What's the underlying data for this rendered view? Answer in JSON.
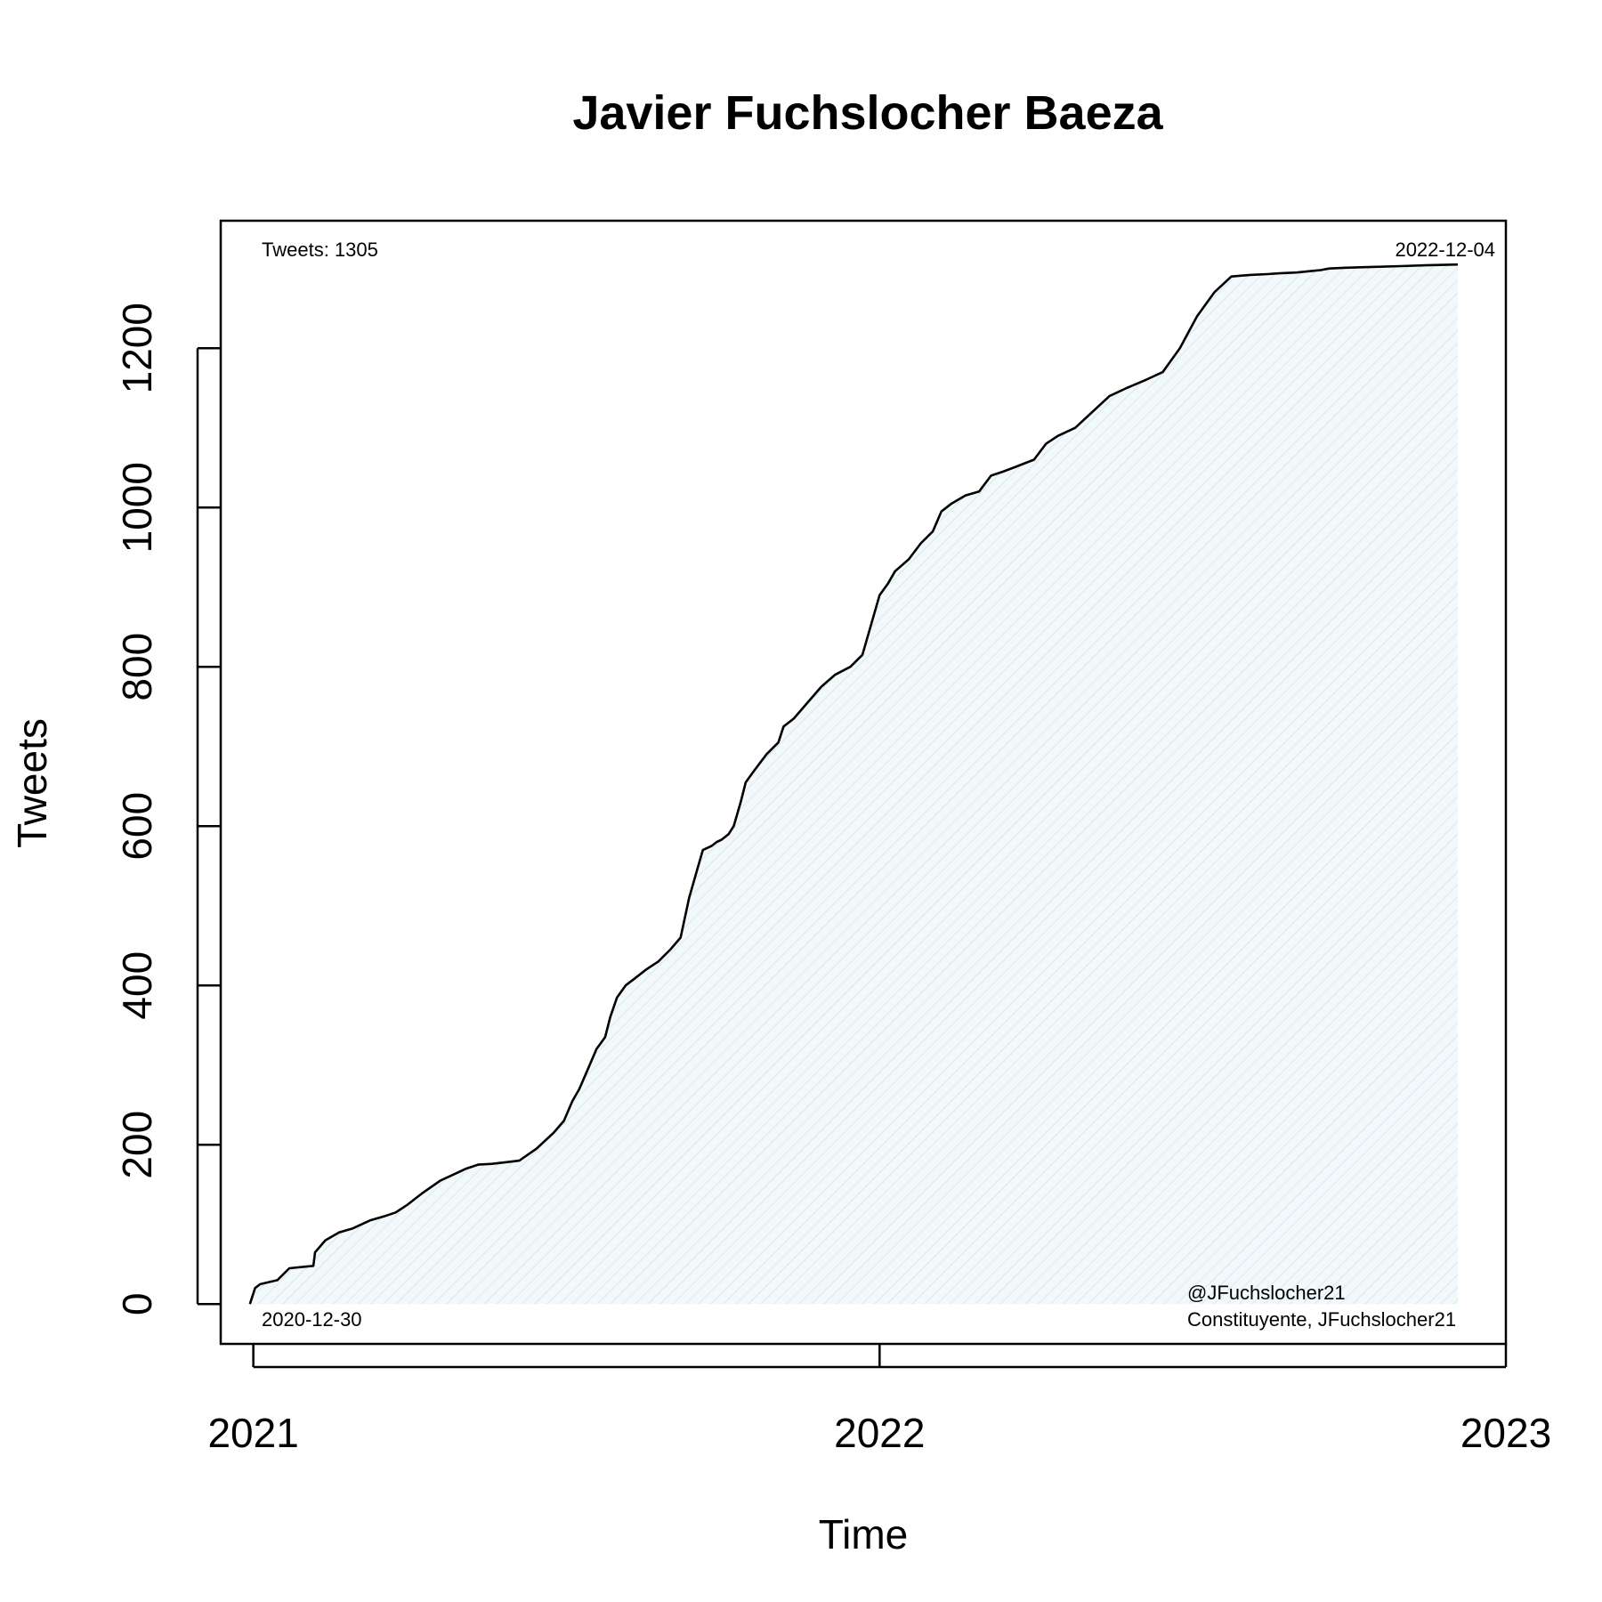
{
  "chart_data": {
    "type": "area",
    "title": "Javier Fuchslocher Baeza",
    "xlabel": "Time",
    "ylabel": "Tweets",
    "xlim": [
      "2020-12-13",
      "2023-01-01"
    ],
    "ylim": [
      -50,
      1360
    ],
    "x_ticks": [
      "2021",
      "2022",
      "2023"
    ],
    "y_ticks": [
      0,
      200,
      400,
      600,
      800,
      1000,
      1200
    ],
    "grid": false,
    "legend": "none",
    "line_color": "#000000",
    "fill_color": "#e8f4f7",
    "annotations": {
      "top_left": "Tweets: 1305",
      "top_right": "2022-12-04",
      "bottom_left": "2020-12-30",
      "bottom_right_line1": "@JFuchslocher21",
      "bottom_right_line2": "Constituyente, JFuchslocher21"
    },
    "series": [
      {
        "x": [
          "2020-12-30",
          "2021-01-02",
          "2021-01-05",
          "2021-01-15",
          "2021-01-22",
          "2021-02-05",
          "2021-02-06",
          "2021-02-12",
          "2021-02-20",
          "2021-02-28",
          "2021-03-10",
          "2021-03-18",
          "2021-03-25",
          "2021-04-01",
          "2021-04-10",
          "2021-04-20",
          "2021-05-05",
          "2021-05-12",
          "2021-05-20",
          "2021-05-28",
          "2021-06-05",
          "2021-06-15",
          "2021-06-25",
          "2021-07-01",
          "2021-07-06",
          "2021-07-10",
          "2021-07-15",
          "2021-07-20",
          "2021-07-25",
          "2021-07-28",
          "2021-08-01",
          "2021-08-06",
          "2021-08-12",
          "2021-08-18",
          "2021-08-25",
          "2021-09-01",
          "2021-09-07",
          "2021-09-12",
          "2021-09-16",
          "2021-09-20",
          "2021-09-25",
          "2021-09-28",
          "2021-10-01",
          "2021-10-05",
          "2021-10-08",
          "2021-10-12",
          "2021-10-15",
          "2021-10-20",
          "2021-10-27",
          "2021-11-03",
          "2021-11-06",
          "2021-11-12",
          "2021-11-20",
          "2021-11-28",
          "2021-12-06",
          "2021-12-15",
          "2021-12-22",
          "2022-01-01",
          "2022-01-06",
          "2022-01-10",
          "2022-01-18",
          "2022-01-25",
          "2022-02-01",
          "2022-02-06",
          "2022-02-12",
          "2022-02-20",
          "2022-02-28",
          "2022-03-07",
          "2022-03-14",
          "2022-03-20",
          "2022-04-01",
          "2022-04-08",
          "2022-04-15",
          "2022-04-25",
          "2022-05-05",
          "2022-05-15",
          "2022-05-25",
          "2022-06-05",
          "2022-06-15",
          "2022-06-25",
          "2022-07-05",
          "2022-07-15",
          "2022-07-25",
          "2022-08-05",
          "2022-08-15",
          "2022-08-22",
          "2022-09-01",
          "2022-09-10",
          "2022-09-15",
          "2022-09-20",
          "2022-09-30",
          "2022-10-15",
          "2022-11-01",
          "2022-11-15",
          "2022-12-04"
        ],
        "y": [
          0,
          20,
          25,
          30,
          45,
          48,
          65,
          80,
          90,
          95,
          105,
          110,
          115,
          125,
          140,
          155,
          170,
          175,
          176,
          178,
          180,
          195,
          215,
          230,
          255,
          270,
          295,
          320,
          335,
          360,
          385,
          400,
          410,
          420,
          430,
          445,
          460,
          510,
          540,
          570,
          575,
          580,
          583,
          590,
          600,
          630,
          655,
          670,
          690,
          705,
          725,
          735,
          755,
          775,
          790,
          800,
          815,
          890,
          905,
          920,
          935,
          955,
          970,
          995,
          1005,
          1015,
          1020,
          1040,
          1045,
          1050,
          1060,
          1080,
          1090,
          1100,
          1120,
          1140,
          1150,
          1160,
          1170,
          1200,
          1240,
          1270,
          1290,
          1292,
          1293,
          1294,
          1295,
          1297,
          1298,
          1300,
          1301,
          1302,
          1303,
          1304,
          1305
        ]
      }
    ]
  }
}
